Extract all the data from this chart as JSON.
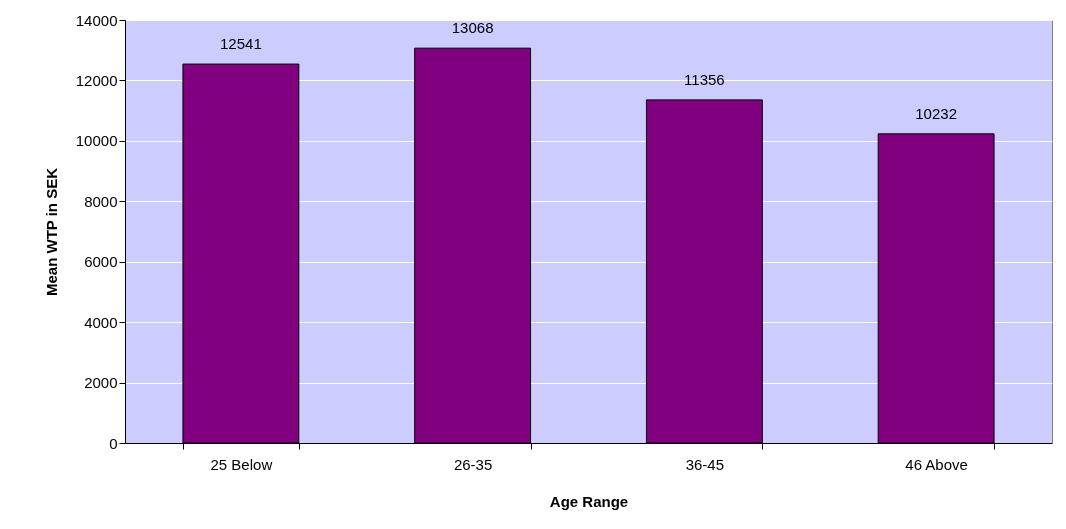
{
  "chart_data": {
    "type": "bar",
    "xlabel": "Age Range",
    "ylabel": "Mean WTP in SEK",
    "categories": [
      "25 Below",
      "26-35",
      "36-45",
      "46 Above"
    ],
    "values": [
      12541,
      13068,
      11356,
      10232
    ],
    "color": "#800080",
    "ylim": [
      0,
      14000
    ],
    "yticks": [
      0,
      2000,
      4000,
      6000,
      8000,
      10000,
      12000,
      14000
    ],
    "grid": "y",
    "data_labels": true
  }
}
